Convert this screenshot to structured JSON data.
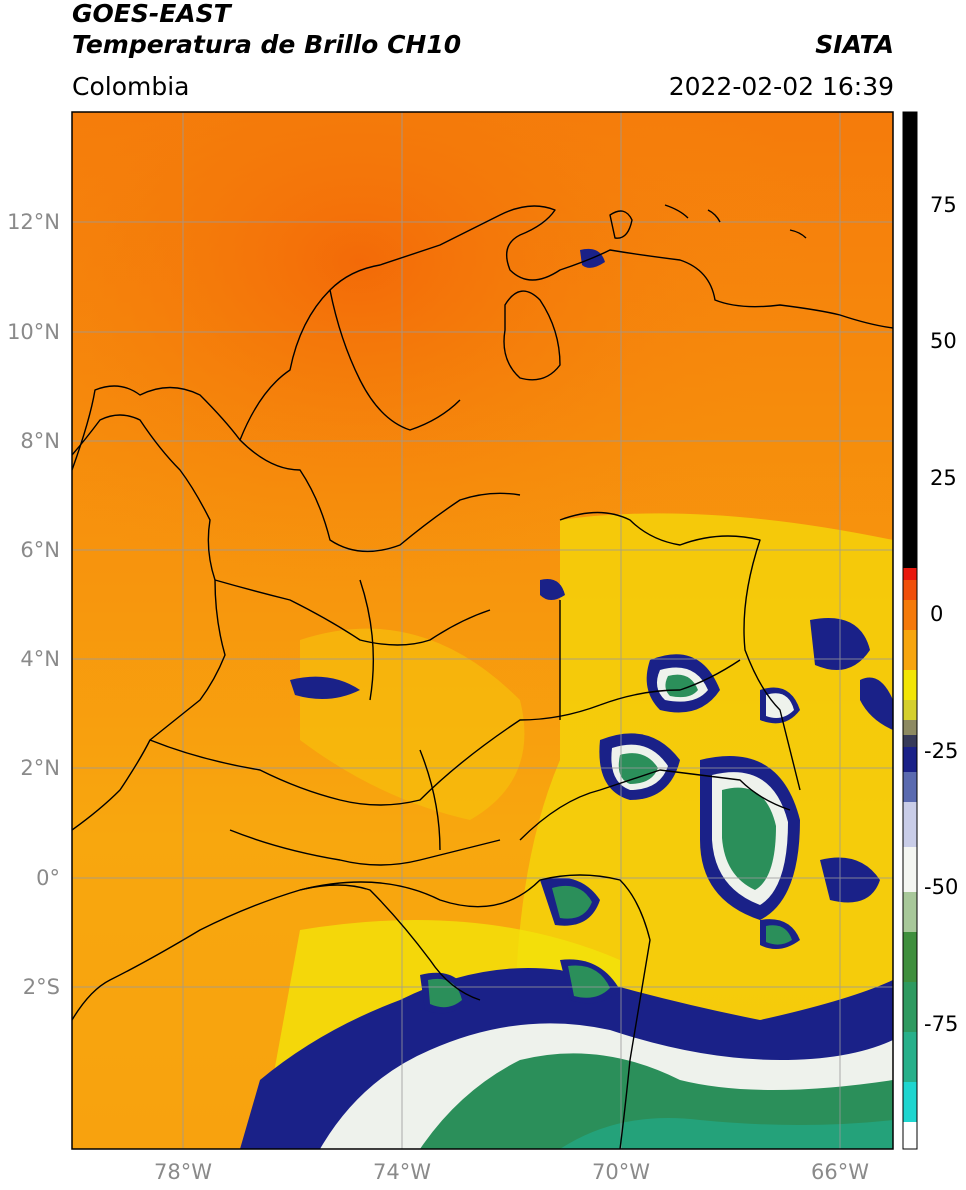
{
  "header": {
    "satellite": "GOES-EAST",
    "product": "Temperatura de Brillo CH10",
    "region": "Colombia",
    "org": "SIATA",
    "timestamp": "2022-02-02 16:39"
  },
  "map": {
    "lat_ticks": [
      "12°N",
      "10°N",
      "8°N",
      "6°N",
      "4°N",
      "2°N",
      "0°",
      "2°S"
    ],
    "lon_ticks": [
      "78°W",
      "74°W",
      "70°W",
      "66°W"
    ],
    "lon_range": [
      -80,
      -65
    ],
    "lat_range": [
      -5,
      14
    ],
    "colors": {
      "warm": "#f57a0a",
      "mid": "#f9b20f",
      "cold_yellow": "#f3ee05",
      "deep_blue": "#1a2188",
      "cloud_white": "#eef2ec",
      "cloud_green": "#2b8f5a",
      "coastline": "#000000",
      "grid": "#9a9a9a"
    }
  },
  "colorbar": {
    "labels": [
      "75",
      "50",
      "25",
      "0",
      "-25",
      "-50",
      "-75"
    ],
    "values": [
      75,
      50,
      25,
      0,
      -25,
      -50,
      -75
    ],
    "range": [
      -95,
      90
    ]
  }
}
